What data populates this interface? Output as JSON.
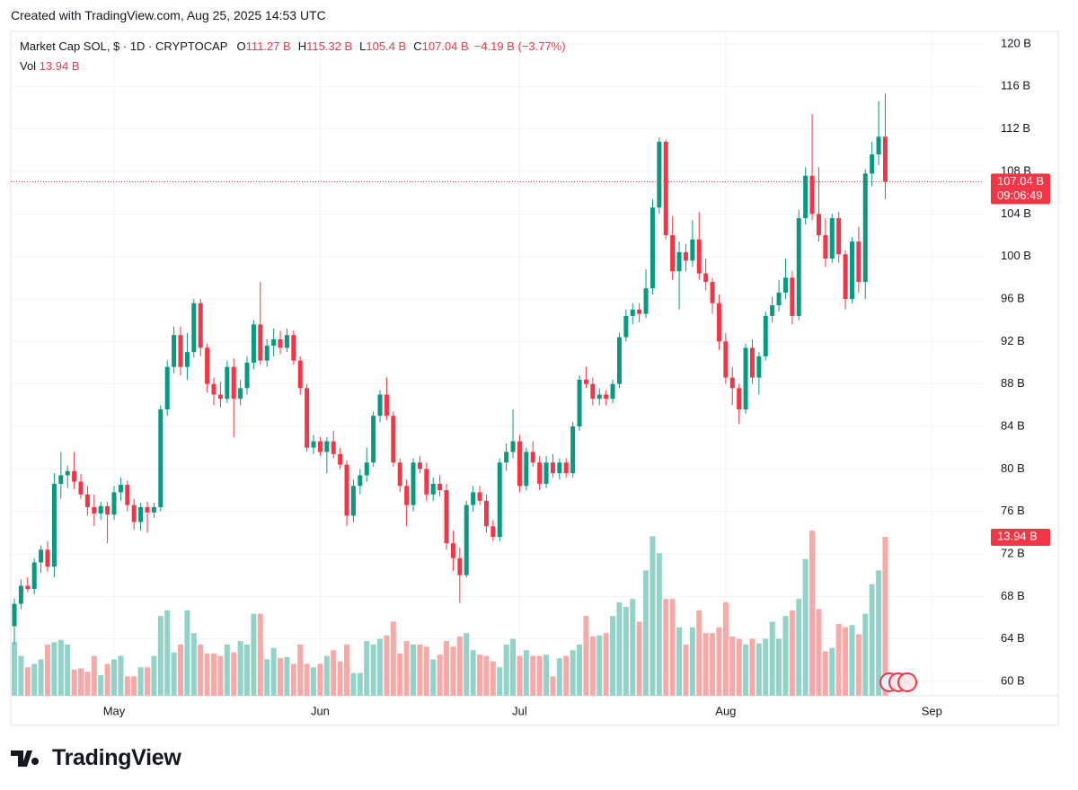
{
  "header": {
    "caption": "Created with TradingView.com, Aug 25, 2025 14:53 UTC",
    "brand": "TradingView"
  },
  "chart_data": {
    "type": "candlestick",
    "legend": {
      "symbol": "Market Cap SOL, $ · 1D · CRYPTOCAP",
      "fields": [
        {
          "key": "O",
          "value": "111.27 B"
        },
        {
          "key": "H",
          "value": "115.32 B"
        },
        {
          "key": "L",
          "value": "105.4 B"
        },
        {
          "key": "C",
          "value": "107.04 B"
        }
      ],
      "change": "−4.19 B (−3.77%)",
      "volume_key": "Vol",
      "volume_value": "13.94 B"
    },
    "last_price_label": "107.04 B",
    "countdown": "09:06:49",
    "last_volume_label": "13.94 B",
    "up_color": "#089981",
    "down_color": "#f23645",
    "up_volume_color": "#92d2c8",
    "down_volume_color": "#f7a9a7",
    "grid": true,
    "open": [
      65.2,
      67.3,
      69.0,
      68.7,
      71.2,
      72.4,
      70.8,
      78.6,
      79.4,
      79.8,
      78.8,
      77.6,
      76.4,
      75.8,
      76.5,
      75.7,
      77.8,
      78.5,
      76.6,
      75.0,
      76.4,
      75.9,
      76.4,
      85.6,
      89.6,
      92.6,
      89.6,
      91.0,
      95.6,
      91.4,
      88.0,
      87.0,
      86.6,
      89.6,
      86.6,
      87.6,
      90.0,
      93.6,
      90.2,
      91.6,
      92.2,
      91.4,
      92.6,
      90.2,
      87.6,
      82.0,
      82.6,
      81.6,
      82.6,
      81.4,
      80.4,
      75.6,
      78.4,
      79.4,
      80.6,
      85.0,
      87.0,
      85.0,
      80.6,
      78.4,
      76.6,
      80.6,
      80.0,
      77.6,
      78.6,
      78.0,
      73.0,
      71.6,
      70.0,
      76.6,
      77.8,
      77.0,
      74.6,
      73.6,
      80.6,
      81.6,
      82.6,
      78.4,
      81.6,
      80.6,
      78.6,
      80.6,
      79.6,
      80.6,
      79.6,
      84.0,
      88.4,
      88.0,
      86.6,
      87.0,
      86.6,
      88.0,
      92.4,
      94.4,
      95.0,
      94.6,
      97.0,
      104.6,
      110.8,
      102.0,
      98.6,
      100.4,
      99.6,
      101.6,
      98.4,
      97.6,
      95.6,
      92.0,
      88.6,
      87.6,
      85.6,
      91.4,
      88.6,
      90.6,
      94.4,
      95.4,
      96.6,
      98.0,
      94.4,
      103.6,
      107.6,
      104.0,
      102.0,
      99.8,
      103.6,
      100.2,
      96.0,
      101.4,
      97.6,
      107.8,
      109.6,
      111.27
    ],
    "high": [
      67.8,
      69.6,
      69.8,
      71.6,
      72.8,
      73.2,
      79.6,
      81.6,
      80.3,
      81.6,
      79.5,
      78.4,
      77.6,
      76.9,
      76.9,
      78.4,
      79.2,
      78.9,
      77.2,
      76.8,
      76.9,
      76.8,
      86.0,
      90.2,
      93.4,
      93.4,
      92.8,
      96.0,
      96.0,
      91.8,
      88.6,
      88.2,
      90.2,
      90.4,
      88.4,
      90.6,
      94.0,
      97.6,
      92.2,
      93.2,
      93.0,
      93.2,
      93.0,
      90.6,
      88.0,
      83.2,
      83.0,
      83.0,
      83.6,
      82.0,
      80.8,
      79.0,
      80.0,
      82.0,
      85.4,
      87.4,
      88.6,
      85.4,
      81.0,
      79.0,
      81.0,
      81.2,
      80.6,
      79.2,
      79.4,
      78.6,
      74.2,
      72.6,
      77.0,
      78.4,
      78.4,
      77.6,
      75.2,
      81.0,
      82.4,
      85.6,
      83.2,
      82.0,
      82.6,
      81.2,
      81.2,
      81.4,
      81.0,
      81.0,
      84.4,
      88.8,
      89.6,
      88.6,
      87.6,
      87.4,
      88.4,
      92.8,
      95.0,
      95.6,
      95.6,
      98.8,
      105.4,
      111.2,
      111.0,
      103.8,
      101.4,
      101.2,
      103.4,
      104.2,
      99.8,
      98.0,
      96.4,
      92.8,
      89.6,
      88.0,
      91.8,
      92.2,
      91.0,
      94.8,
      96.2,
      97.8,
      99.8,
      98.6,
      104.4,
      108.4,
      113.4,
      108.4,
      103.6,
      104.0,
      104.2,
      100.6,
      101.8,
      102.8,
      108.2,
      110.8,
      114.6,
      115.32
    ],
    "low": [
      63.5,
      66.8,
      68.4,
      68.2,
      70.2,
      70.3,
      69.8,
      77.2,
      78.2,
      78.1,
      77.2,
      75.6,
      74.6,
      75.2,
      73.0,
      75.2,
      77.0,
      76.0,
      74.3,
      74.2,
      74.0,
      75.4,
      76.0,
      85.0,
      89.0,
      88.8,
      88.4,
      90.5,
      90.6,
      87.2,
      86.0,
      85.8,
      86.2,
      83.0,
      86.0,
      87.0,
      89.4,
      89.8,
      89.6,
      90.6,
      90.8,
      91.0,
      89.8,
      87.0,
      81.6,
      81.4,
      81.2,
      79.6,
      81.0,
      80.0,
      74.6,
      75.0,
      77.6,
      78.8,
      80.2,
      84.4,
      84.6,
      80.2,
      77.8,
      74.6,
      76.0,
      79.6,
      77.0,
      77.0,
      77.4,
      72.4,
      70.4,
      67.4,
      69.8,
      76.0,
      76.6,
      74.0,
      73.2,
      73.2,
      79.8,
      81.0,
      77.8,
      78.0,
      80.2,
      78.0,
      78.2,
      79.2,
      79.0,
      79.2,
      79.2,
      83.6,
      87.6,
      86.0,
      86.0,
      86.0,
      86.2,
      87.6,
      92.0,
      93.6,
      93.8,
      94.2,
      96.4,
      104.0,
      101.6,
      97.8,
      95.0,
      98.6,
      99.0,
      97.8,
      96.8,
      94.6,
      91.2,
      88.0,
      86.0,
      84.2,
      85.2,
      88.0,
      87.0,
      90.2,
      93.8,
      94.8,
      96.0,
      93.6,
      94.0,
      103.0,
      103.4,
      101.4,
      99.0,
      99.4,
      99.4,
      95.0,
      95.6,
      96.6,
      96.0,
      106.6,
      108.6,
      105.4
    ],
    "close": [
      67.3,
      69.0,
      68.7,
      71.2,
      72.4,
      70.8,
      78.6,
      79.4,
      79.8,
      78.8,
      77.6,
      76.4,
      75.8,
      76.5,
      75.7,
      77.8,
      78.5,
      76.6,
      75.0,
      76.4,
      75.9,
      76.4,
      85.6,
      89.6,
      92.6,
      89.6,
      91.0,
      95.6,
      91.4,
      88.0,
      87.0,
      86.6,
      89.6,
      86.6,
      87.6,
      90.0,
      93.6,
      90.2,
      91.6,
      92.2,
      91.4,
      92.6,
      90.2,
      87.6,
      82.0,
      82.6,
      81.6,
      82.6,
      81.4,
      80.4,
      75.6,
      78.4,
      79.4,
      80.6,
      85.0,
      87.0,
      85.0,
      80.6,
      78.4,
      76.6,
      80.6,
      80.0,
      77.6,
      78.6,
      78.0,
      73.0,
      71.6,
      70.0,
      76.6,
      77.8,
      77.0,
      74.6,
      73.6,
      80.6,
      81.6,
      82.6,
      78.4,
      81.6,
      80.6,
      78.6,
      80.6,
      79.6,
      80.6,
      79.6,
      84.0,
      88.4,
      88.0,
      86.6,
      87.0,
      86.6,
      88.0,
      92.4,
      94.4,
      95.0,
      94.6,
      97.0,
      104.6,
      110.8,
      102.0,
      98.6,
      100.4,
      99.6,
      101.6,
      98.4,
      97.6,
      95.6,
      92.0,
      88.6,
      87.6,
      85.6,
      91.4,
      88.6,
      90.6,
      94.4,
      95.4,
      96.6,
      98.0,
      94.4,
      103.6,
      107.6,
      104.0,
      102.0,
      99.8,
      103.6,
      100.2,
      96.0,
      101.4,
      97.6,
      107.8,
      109.6,
      111.27,
      107.04
    ],
    "volume": [
      4.7,
      3.5,
      2.5,
      2.8,
      3.2,
      4.5,
      4.7,
      4.9,
      4.5,
      2.3,
      2.4,
      2.1,
      3.5,
      1.8,
      2.8,
      3.2,
      3.5,
      1.7,
      1.7,
      2.5,
      2.5,
      3.5,
      7.0,
      7.5,
      3.8,
      4.5,
      7.5,
      5.5,
      4.5,
      3.7,
      3.7,
      3.5,
      4.5,
      3.8,
      4.8,
      4.5,
      7.2,
      7.2,
      3.2,
      4.2,
      3.3,
      3.4,
      2.8,
      4.5,
      2.8,
      2.5,
      2.8,
      3.5,
      4.0,
      3.0,
      4.5,
      2.0,
      2.0,
      4.8,
      4.5,
      5.0,
      5.3,
      6.5,
      3.7,
      4.8,
      4.5,
      4.5,
      4.3,
      3.2,
      3.6,
      4.8,
      4.3,
      5.2,
      5.5,
      4.0,
      3.6,
      3.5,
      3.0,
      2.5,
      4.5,
      5.0,
      3.5,
      4.0,
      3.5,
      3.5,
      3.6,
      1.7,
      3.3,
      3.5,
      4.0,
      4.5,
      7.0,
      5.2,
      5.3,
      5.5,
      7.0,
      8.2,
      7.8,
      8.5,
      6.5,
      11.0,
      14.0,
      12.5,
      8.5,
      8.5,
      6.0,
      4.5,
      6.0,
      7.5,
      5.5,
      5.5,
      6.0,
      8.2,
      5.2,
      5.0,
      4.5,
      5.0,
      4.6,
      5.0,
      6.5,
      5.0,
      7.0,
      7.5,
      8.5,
      12.0,
      14.5,
      7.6,
      3.9,
      4.2,
      6.3,
      6.0,
      6.2,
      5.4,
      7.2,
      9.8,
      11.0,
      13.94
    ],
    "ylim": [
      58.65,
      121.18
    ],
    "yticks": [
      {
        "value": 60,
        "label": "60 B"
      },
      {
        "value": 64,
        "label": "64 B"
      },
      {
        "value": 68,
        "label": "68 B"
      },
      {
        "value": 72,
        "label": "72 B"
      },
      {
        "value": 76,
        "label": "76 B"
      },
      {
        "value": 80,
        "label": "80 B"
      },
      {
        "value": 84,
        "label": "84 B"
      },
      {
        "value": 88,
        "label": "88 B"
      },
      {
        "value": 92,
        "label": "92 B"
      },
      {
        "value": 96,
        "label": "96 B"
      },
      {
        "value": 100,
        "label": "100 B"
      },
      {
        "value": 104,
        "label": "104 B"
      },
      {
        "value": 108,
        "label": "108 B"
      },
      {
        "value": 112,
        "label": "112 B"
      },
      {
        "value": 116,
        "label": "116 B"
      },
      {
        "value": 120,
        "label": "120 B"
      }
    ],
    "volume_lim": [
      0,
      58.3
    ],
    "xlim": [
      -0.54,
      145.8
    ],
    "xticks": [
      {
        "value": 15,
        "label": "May"
      },
      {
        "value": 46,
        "label": "Jun"
      },
      {
        "value": 76,
        "label": "Jul"
      },
      {
        "value": 107,
        "label": "Aug"
      },
      {
        "value": 138,
        "label": "Sep"
      }
    ]
  }
}
